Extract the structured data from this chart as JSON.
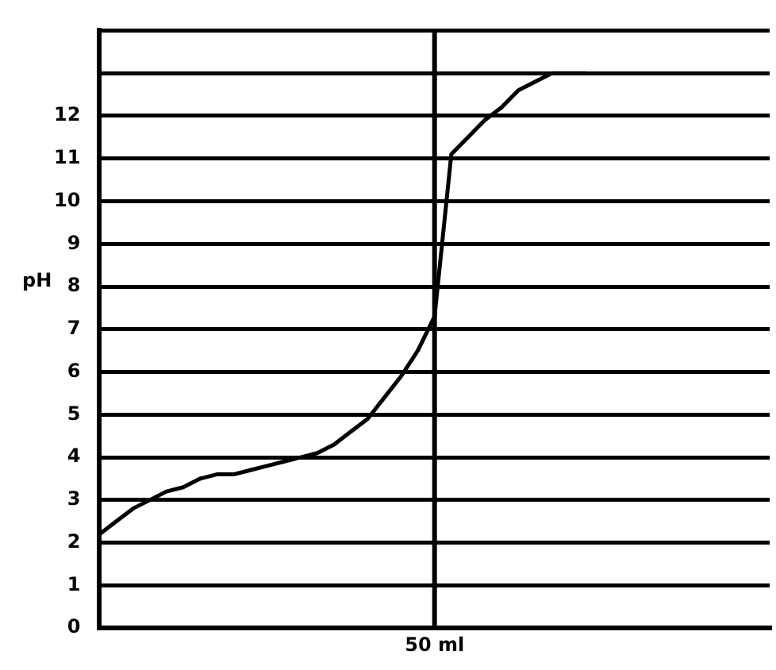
{
  "chart_data": {
    "type": "line",
    "ylabel": "pH",
    "categories": [
      null,
      null,
      null,
      null,
      null,
      null,
      null,
      null,
      null,
      null,
      null,
      null,
      null,
      null,
      null,
      null,
      null,
      null,
      null,
      null,
      "50 ml",
      null,
      null,
      null,
      null,
      null,
      null,
      null,
      null,
      null,
      null,
      null,
      null,
      null,
      null,
      null,
      null,
      null,
      null,
      null,
      null
    ],
    "series": [
      {
        "color": "#000000",
        "values": [
          2.2,
          2.5,
          2.8,
          3.0,
          3.2,
          3.3,
          3.5,
          3.6,
          3.6,
          3.7,
          3.8,
          3.9,
          4.0,
          4.1,
          4.3,
          4.6,
          4.9,
          5.4,
          5.9,
          6.5,
          7.3,
          11.1,
          11.5,
          11.9,
          12.2,
          12.6,
          12.8,
          13.0,
          13.0,
          13.0,
          null,
          null,
          null,
          null,
          null,
          null,
          null,
          null,
          null,
          null,
          null
        ]
      }
    ],
    "ylim": [
      0,
      14
    ],
    "yticks": [
      0,
      1,
      2,
      3,
      4,
      5,
      6,
      7,
      8,
      9,
      10,
      11,
      12,
      {
        "value": 13,
        "label": null
      },
      {
        "value": 14,
        "label": null
      }
    ],
    "ref_lines": [
      {
        "axis": "x",
        "value": "50 ml",
        "color": "#000000"
      }
    ],
    "grid": "y",
    "legend": false,
    "marker": "none",
    "line_style": "solid"
  }
}
